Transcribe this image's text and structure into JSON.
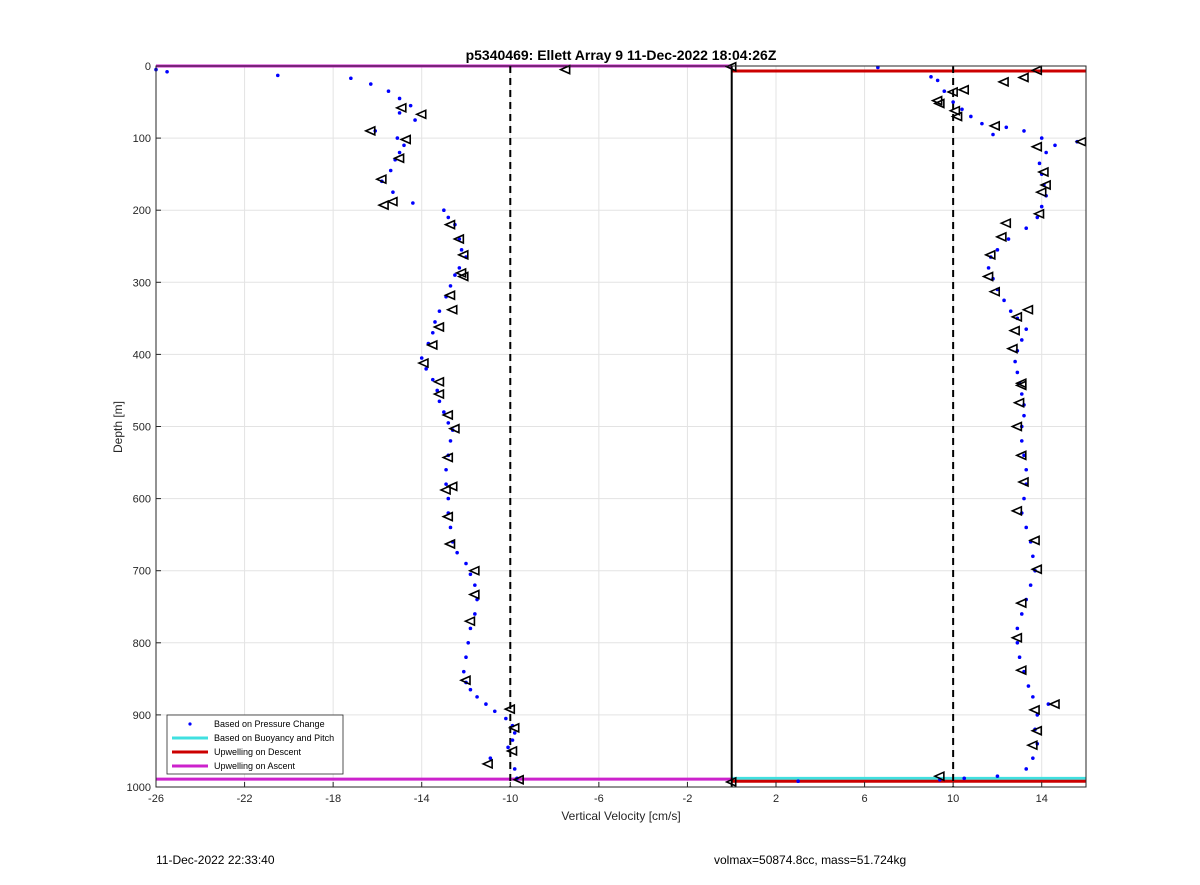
{
  "chart_data": {
    "type": "scatter",
    "title": "p5340469: Ellett Array 9 11-Dec-2022 18:04:26Z",
    "xlabel": "Vertical Velocity [cm/s]",
    "ylabel": "Depth [m]",
    "xlim": [
      -26,
      16
    ],
    "ylim": [
      0,
      1000
    ],
    "y_reversed": true,
    "grid": true,
    "x_ticks": [
      -26,
      -22,
      -18,
      -14,
      -10,
      -6,
      -2,
      2,
      6,
      10,
      14
    ],
    "y_ticks": [
      0,
      100,
      200,
      300,
      400,
      500,
      600,
      700,
      800,
      900,
      1000
    ],
    "legend_position": "bottom-left",
    "legend": [
      {
        "label": "Based on Pressure Change",
        "color": "#0000ff",
        "kind": "marker"
      },
      {
        "label": "Based on Buoyancy and Pitch",
        "color": "#40e0e0",
        "kind": "line"
      },
      {
        "label": "Upwelling on Descent",
        "color": "#cc0000",
        "kind": "line"
      },
      {
        "label": "Upwelling on Ascent",
        "color": "#cc22cc",
        "kind": "line"
      }
    ],
    "reference_lines": [
      {
        "name": "descent-threshold",
        "x": -10,
        "style": "dashed",
        "color": "#000000"
      },
      {
        "name": "zero-velocity",
        "x": 0,
        "style": "solid",
        "color": "#000000"
      },
      {
        "name": "ascent-threshold",
        "x": 10,
        "style": "dashed",
        "color": "#000000"
      }
    ],
    "horizontal_lines": [
      {
        "series": "Upwelling on Ascent",
        "y": 0,
        "x_range": [
          -26,
          0
        ],
        "color": "#cc22cc"
      },
      {
        "series": "Upwelling on Descent",
        "y": 7,
        "x_range": [
          0,
          16
        ],
        "color": "#cc0000"
      },
      {
        "series": "Based on Buoyancy and Pitch",
        "y": 988,
        "x_range": [
          0,
          16
        ],
        "color": "#40e0e0"
      },
      {
        "series": "Upwelling on Ascent",
        "y": 989,
        "x_range": [
          -26,
          0
        ],
        "color": "#cc22cc"
      },
      {
        "series": "Upwelling on Descent",
        "y": 992,
        "x_range": [
          0,
          16
        ],
        "color": "#cc0000"
      }
    ],
    "series": [
      {
        "name": "Based on Pressure Change",
        "note_profile": "descent",
        "color": "#0000ff",
        "x": [
          -26,
          -25.5,
          -20.5,
          -17.2,
          -16.3,
          -15.5,
          -15.0,
          -14.5,
          -15.0,
          -14.3,
          -16.1,
          -15.1,
          -14.8,
          -15.0,
          -15.2,
          -15.4,
          -15.8,
          -15.3,
          -14.4,
          -13.0,
          -12.8,
          -12.5,
          -12.3,
          -12.2,
          -12.0,
          -12.3,
          -12.5,
          -12.7,
          -12.9,
          -13.2,
          -13.4,
          -13.5,
          -13.7,
          -14.0,
          -13.8,
          -13.5,
          -13.3,
          -13.2,
          -13.0,
          -12.8,
          -12.6,
          -12.7,
          -12.8,
          -12.9,
          -12.9,
          -12.8,
          -12.8,
          -12.7,
          -12.6,
          -12.4,
          -12.0,
          -11.8,
          -11.6,
          -11.5,
          -11.6,
          -11.8,
          -11.9,
          -12.0,
          -12.1,
          -12.0,
          -11.8,
          -11.5,
          -11.1,
          -10.7,
          -10.2,
          -9.9,
          -9.8,
          -9.9,
          -10.1,
          -10.9,
          -9.8,
          -9.7
        ],
        "y": [
          5,
          8,
          13,
          17,
          25,
          35,
          45,
          55,
          65,
          75,
          90,
          100,
          110,
          120,
          130,
          145,
          160,
          175,
          190,
          200,
          210,
          220,
          240,
          255,
          265,
          280,
          290,
          305,
          320,
          340,
          355,
          370,
          385,
          405,
          420,
          435,
          450,
          465,
          480,
          495,
          505,
          520,
          540,
          560,
          580,
          600,
          620,
          640,
          660,
          675,
          690,
          705,
          720,
          740,
          760,
          780,
          800,
          820,
          840,
          855,
          865,
          875,
          885,
          895,
          905,
          915,
          925,
          935,
          945,
          960,
          975,
          988
        ]
      },
      {
        "name": "Based on Pressure Change",
        "note_profile": "ascent",
        "color": "#0000ff",
        "x": [
          6.6,
          9.0,
          9.3,
          9.6,
          10.0,
          10.4,
          10.8,
          11.3,
          11.8,
          12.4,
          13.2,
          14.0,
          14.6,
          15.6,
          14.2,
          13.9,
          14.0,
          14.1,
          14.2,
          14.0,
          13.8,
          13.3,
          12.5,
          12.0,
          11.7,
          11.6,
          11.8,
          12.0,
          12.3,
          12.6,
          12.9,
          13.3,
          13.1,
          12.9,
          12.8,
          12.9,
          13.0,
          13.1,
          13.2,
          13.2,
          13.1,
          13.1,
          13.2,
          13.3,
          13.3,
          13.2,
          13.1,
          13.3,
          13.5,
          13.6,
          13.7,
          13.5,
          13.3,
          13.1,
          12.9,
          12.9,
          13.0,
          13.2,
          13.4,
          13.6,
          14.3,
          13.8,
          13.7,
          13.8,
          13.6,
          13.3,
          12.0,
          10.5,
          9.4,
          3.0
        ],
        "y": [
          2,
          15,
          20,
          35,
          50,
          60,
          70,
          80,
          95,
          85,
          90,
          100,
          110,
          105,
          120,
          135,
          150,
          165,
          180,
          195,
          210,
          225,
          240,
          255,
          265,
          280,
          295,
          310,
          325,
          340,
          350,
          365,
          380,
          395,
          410,
          425,
          440,
          455,
          470,
          485,
          500,
          520,
          540,
          560,
          580,
          600,
          620,
          640,
          660,
          680,
          700,
          720,
          740,
          760,
          780,
          800,
          820,
          840,
          860,
          875,
          885,
          900,
          920,
          940,
          960,
          975,
          985,
          988,
          990,
          992
        ]
      }
    ],
    "pitch_markers": [
      {
        "profile": "descent",
        "points": [
          [
            -7.5,
            5
          ],
          [
            -14.9,
            58
          ],
          [
            -14.0,
            67
          ],
          [
            -16.3,
            90
          ],
          [
            -14.7,
            102
          ],
          [
            -15.0,
            128
          ],
          [
            -15.8,
            157
          ],
          [
            -15.3,
            188
          ],
          [
            -15.7,
            193
          ],
          [
            -12.7,
            220
          ],
          [
            -12.3,
            240
          ],
          [
            -12.1,
            262
          ],
          [
            -12.2,
            287
          ],
          [
            -12.1,
            292
          ],
          [
            -12.7,
            318
          ],
          [
            -12.6,
            338
          ],
          [
            -13.2,
            362
          ],
          [
            -13.5,
            387
          ],
          [
            -13.9,
            412
          ],
          [
            -13.2,
            438
          ],
          [
            -13.2,
            455
          ],
          [
            -12.8,
            484
          ],
          [
            -12.5,
            503
          ],
          [
            -12.8,
            543
          ],
          [
            -12.9,
            588
          ],
          [
            -12.6,
            583
          ],
          [
            -12.8,
            625
          ],
          [
            -12.7,
            663
          ],
          [
            -11.6,
            700
          ],
          [
            -11.6,
            733
          ],
          [
            -11.8,
            770
          ],
          [
            -12.0,
            852
          ],
          [
            -10.0,
            892
          ],
          [
            -9.8,
            918
          ],
          [
            -9.9,
            950
          ],
          [
            -11.0,
            968
          ],
          [
            -9.6,
            990
          ]
        ]
      },
      {
        "profile": "ascent",
        "points": [
          [
            0.0,
            1
          ],
          [
            13.8,
            6
          ],
          [
            13.2,
            16
          ],
          [
            12.3,
            22
          ],
          [
            10.5,
            33
          ],
          [
            10.0,
            36
          ],
          [
            9.3,
            48
          ],
          [
            9.4,
            52
          ],
          [
            10.1,
            62
          ],
          [
            10.2,
            70
          ],
          [
            11.9,
            83
          ],
          [
            15.8,
            105
          ],
          [
            13.8,
            112
          ],
          [
            14.1,
            147
          ],
          [
            14.2,
            165
          ],
          [
            14.0,
            175
          ],
          [
            13.9,
            205
          ],
          [
            12.4,
            218
          ],
          [
            12.2,
            237
          ],
          [
            11.7,
            262
          ],
          [
            11.6,
            292
          ],
          [
            11.9,
            313
          ],
          [
            13.4,
            338
          ],
          [
            12.9,
            348
          ],
          [
            12.8,
            367
          ],
          [
            12.7,
            392
          ],
          [
            13.1,
            440
          ],
          [
            13.1,
            443
          ],
          [
            13.0,
            467
          ],
          [
            12.9,
            500
          ],
          [
            13.1,
            540
          ],
          [
            13.2,
            577
          ],
          [
            12.9,
            617
          ],
          [
            13.7,
            658
          ],
          [
            13.8,
            698
          ],
          [
            13.1,
            745
          ],
          [
            12.9,
            793
          ],
          [
            13.1,
            838
          ],
          [
            14.6,
            885
          ],
          [
            13.7,
            893
          ],
          [
            13.8,
            922
          ],
          [
            13.6,
            942
          ],
          [
            9.4,
            985
          ],
          [
            0.0,
            993
          ]
        ]
      }
    ]
  },
  "footer": {
    "timestamp": "11-Dec-2022 22:33:40",
    "vehicle_info": "volmax=50874.8cc, mass=51.724kg"
  },
  "colors": {
    "background": "#ffffff",
    "grid": "#e3e3e3",
    "axis": "#262626"
  }
}
